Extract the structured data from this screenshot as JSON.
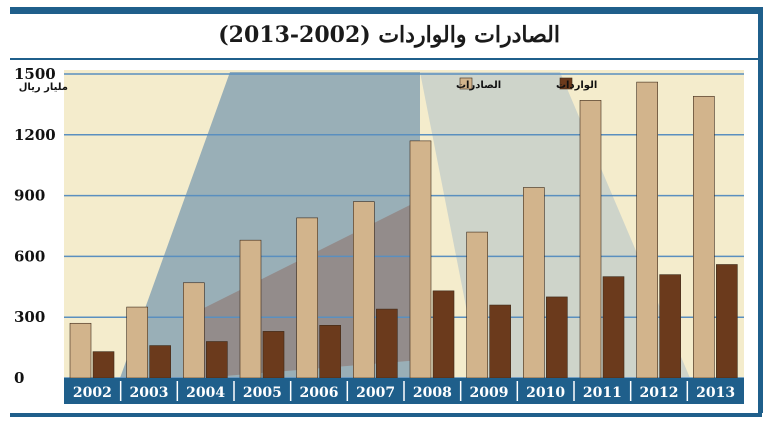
{
  "title": "الصادرات والواردات (2002-2013)",
  "chart_data": {
    "type": "bar",
    "ylabel": "مليار ريال",
    "ylim": [
      0,
      1500
    ],
    "yticks": [
      0,
      300,
      600,
      900,
      1200,
      1500
    ],
    "categories": [
      "2002",
      "2003",
      "2004",
      "2005",
      "2006",
      "2007",
      "2008",
      "2009",
      "2010",
      "2011",
      "2012",
      "2013"
    ],
    "series": [
      {
        "name": "الصادرات",
        "color": "#d2b48c",
        "values": [
          270,
          350,
          470,
          680,
          790,
          870,
          1170,
          720,
          940,
          1370,
          1460,
          1390
        ]
      },
      {
        "name": "الواردات",
        "color": "#6b3a1c",
        "values": [
          130,
          160,
          180,
          230,
          260,
          340,
          430,
          360,
          400,
          500,
          510,
          560
        ]
      }
    ],
    "grid": true,
    "legend_position": "top-center",
    "colors": {
      "frame": "#1f5f8b",
      "plot_bg": "#f4eccc",
      "axis_band": "#1f5f8b"
    }
  }
}
